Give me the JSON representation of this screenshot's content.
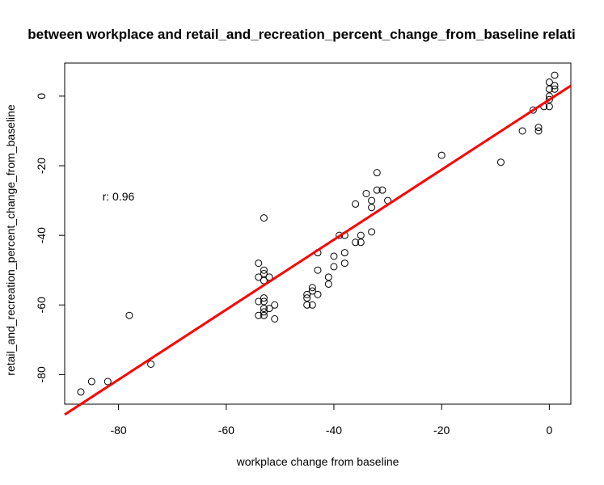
{
  "chart_data": {
    "type": "scatter",
    "title": "between workplace and retail_and_recreation_percent_change_from_baseline relati",
    "xlabel": "workplace change from baseline",
    "ylabel": "retail_and_recreation_percent_change_from_baseline",
    "xlim": [
      -90,
      4
    ],
    "ylim": [
      -88.5,
      9.5
    ],
    "xticks": [
      -80,
      -60,
      -40,
      -20,
      0
    ],
    "yticks": [
      0,
      -20,
      -40,
      -60,
      -80
    ],
    "xtick_labels": [
      "-80",
      "-60",
      "-40",
      "-20",
      "0"
    ],
    "ytick_labels": [
      "0",
      "-20",
      "-40",
      "-60",
      "-80"
    ],
    "annotation": "r: 0.96",
    "annotation_pos": [
      -83,
      -30
    ],
    "regression_line": {
      "color": "#ff0000",
      "x": [
        -90,
        4
      ],
      "y": [
        -91.5,
        3.0
      ]
    },
    "grid": false,
    "point_color": "#000000",
    "points": [
      [
        -87,
        -85
      ],
      [
        -85,
        -82
      ],
      [
        -82,
        -82
      ],
      [
        -78,
        -63
      ],
      [
        -74,
        -77
      ],
      [
        -54,
        -48
      ],
      [
        -54,
        -52
      ],
      [
        -54,
        -59
      ],
      [
        -54,
        -63
      ],
      [
        -53,
        -35
      ],
      [
        -53,
        -50
      ],
      [
        -53,
        -51
      ],
      [
        -53,
        -53
      ],
      [
        -53,
        -58
      ],
      [
        -53,
        -59
      ],
      [
        -53,
        -61
      ],
      [
        -53,
        -62
      ],
      [
        -53,
        -63
      ],
      [
        -52,
        -52
      ],
      [
        -52,
        -61
      ],
      [
        -51,
        -60
      ],
      [
        -51,
        -64
      ],
      [
        -45,
        -57
      ],
      [
        -45,
        -58
      ],
      [
        -45,
        -60
      ],
      [
        -44,
        -55
      ],
      [
        -44,
        -56
      ],
      [
        -44,
        -60
      ],
      [
        -43,
        -45
      ],
      [
        -43,
        -50
      ],
      [
        -43,
        -57
      ],
      [
        -41,
        -52
      ],
      [
        -41,
        -54
      ],
      [
        -40,
        -46
      ],
      [
        -40,
        -49
      ],
      [
        -39,
        -40
      ],
      [
        -38,
        -40
      ],
      [
        -38,
        -45
      ],
      [
        -38,
        -48
      ],
      [
        -36,
        -31
      ],
      [
        -36,
        -42
      ],
      [
        -35,
        -40
      ],
      [
        -35,
        -42
      ],
      [
        -34,
        -28
      ],
      [
        -33,
        -30
      ],
      [
        -33,
        -32
      ],
      [
        -33,
        -39
      ],
      [
        -32,
        -22
      ],
      [
        -32,
        -27
      ],
      [
        -31,
        -27
      ],
      [
        -30,
        -30
      ],
      [
        -20,
        -17
      ],
      [
        -9,
        -19
      ],
      [
        -5,
        -10
      ],
      [
        -3,
        -4
      ],
      [
        -2,
        -9
      ],
      [
        -2,
        -10
      ],
      [
        -1,
        -3
      ],
      [
        0,
        -3
      ],
      [
        0,
        -1
      ],
      [
        0,
        0
      ],
      [
        0,
        2
      ],
      [
        0,
        4
      ],
      [
        1,
        3
      ],
      [
        1,
        2
      ],
      [
        1,
        6
      ]
    ]
  }
}
